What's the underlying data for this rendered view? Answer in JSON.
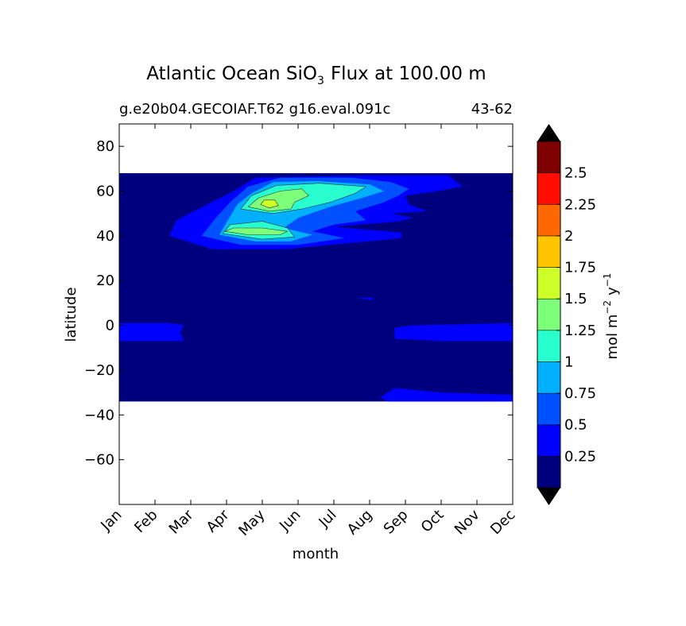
{
  "chart_data": {
    "type": "contour",
    "title_main": "Atlantic Ocean SiO",
    "title_sub": "3",
    "title_rest": "Flux at 100.00 m",
    "case_label": "g.e20b04.GECOIAF.T62 g16.eval.091c",
    "years_label": "43-62",
    "xlabel": "month",
    "ylabel": "latitude",
    "x_categories": [
      "Jan",
      "Feb",
      "Mar",
      "Apr",
      "May",
      "Jun",
      "Jul",
      "Aug",
      "Sep",
      "Oct",
      "Nov",
      "Dec"
    ],
    "xlim": [
      0,
      11
    ],
    "ylim": [
      -80,
      90
    ],
    "y_ticks": [
      -60,
      -40,
      -20,
      0,
      20,
      40,
      60,
      80
    ],
    "y_tick_labels": [
      "−60",
      "−40",
      "−20",
      "0",
      "20",
      "40",
      "60",
      "80"
    ],
    "data_lat_range": [
      -34,
      68
    ],
    "colorbar": {
      "label_main": "mol m",
      "label_exp1": "−2",
      "label_mid": "y",
      "label_exp2": "−1",
      "levels": [
        0,
        0.25,
        0.5,
        0.75,
        1,
        1.25,
        1.5,
        1.75,
        2,
        2.25,
        2.5,
        2.75
      ],
      "tick_values": [
        0.25,
        0.5,
        0.75,
        1,
        1.25,
        1.5,
        1.75,
        2,
        2.25,
        2.5
      ],
      "tick_labels": [
        "0.25",
        "0.5",
        "0.75",
        "1",
        "1.25",
        "1.5",
        "1.75",
        "2",
        "2.25",
        "2.5"
      ],
      "colors": [
        "#00007f",
        "#0000ff",
        "#0050ff",
        "#00b0ff",
        "#29ffce",
        "#7dff7a",
        "#ceff29",
        "#ffc400",
        "#ff6800",
        "#ff0d00",
        "#7f0000"
      ],
      "extend_low": "#000000",
      "extend_high": "#000000"
    },
    "contour_regions": [
      {
        "level": 1,
        "points": [
          [
            1.4,
            40
          ],
          [
            2.6,
            34
          ],
          [
            4.6,
            34
          ],
          [
            7.9,
            39
          ],
          [
            7.9,
            41.5
          ],
          [
            6.0,
            44
          ],
          [
            7.8,
            46.5
          ],
          [
            8.2,
            48
          ],
          [
            7.6,
            50
          ],
          [
            8.6,
            51
          ],
          [
            8.1,
            54
          ],
          [
            8.0,
            58
          ],
          [
            8.9,
            60
          ],
          [
            9.6,
            62
          ],
          [
            9.2,
            67
          ],
          [
            7.0,
            67
          ],
          [
            3.8,
            66
          ],
          [
            3.2,
            60
          ],
          [
            2.2,
            52
          ],
          [
            1.6,
            47
          ]
        ]
      },
      {
        "level": 1,
        "points": [
          [
            0,
            -7
          ],
          [
            1.8,
            -7
          ],
          [
            1.7,
            -3
          ],
          [
            1.8,
            0
          ],
          [
            1.4,
            1
          ],
          [
            0,
            1
          ]
        ]
      },
      {
        "level": 1,
        "points": [
          [
            7.7,
            -6
          ],
          [
            9.0,
            -7
          ],
          [
            11,
            -7
          ],
          [
            11,
            1
          ],
          [
            8.2,
            0
          ],
          [
            7.7,
            -1
          ]
        ]
      },
      {
        "level": 1,
        "points": [
          [
            7.5,
            -34
          ],
          [
            8.8,
            -34
          ],
          [
            11,
            -34
          ],
          [
            11,
            -31
          ],
          [
            9.0,
            -30
          ],
          [
            7.7,
            -28
          ],
          [
            7.3,
            -32
          ]
        ]
      },
      {
        "level": 1,
        "points": [
          [
            6.6,
            12
          ],
          [
            7.1,
            11.5
          ],
          [
            7.1,
            12.5
          ]
        ]
      },
      {
        "level": 2,
        "points": [
          [
            2.3,
            40
          ],
          [
            3.4,
            36
          ],
          [
            5.0,
            36
          ],
          [
            6.3,
            39
          ],
          [
            5.4,
            42
          ],
          [
            6.0,
            45
          ],
          [
            6.9,
            47
          ],
          [
            6.6,
            51
          ],
          [
            7.4,
            55
          ],
          [
            7.8,
            58
          ],
          [
            8.1,
            61
          ],
          [
            7.6,
            64
          ],
          [
            6.5,
            66
          ],
          [
            4.5,
            66
          ],
          [
            3.6,
            62
          ],
          [
            3.1,
            55
          ],
          [
            2.7,
            48
          ]
        ]
      },
      {
        "level": 3,
        "points": [
          [
            2.8,
            40.5
          ],
          [
            3.8,
            37.5
          ],
          [
            4.8,
            37.5
          ],
          [
            5.4,
            40.5
          ],
          [
            4.6,
            43.5
          ],
          [
            5.0,
            48
          ],
          [
            5.9,
            53
          ],
          [
            6.8,
            57
          ],
          [
            7.4,
            60
          ],
          [
            7.0,
            63
          ],
          [
            5.5,
            64.5
          ],
          [
            4.3,
            64
          ],
          [
            3.7,
            59
          ],
          [
            3.3,
            54
          ],
          [
            3.0,
            46
          ]
        ]
      },
      {
        "level": 4,
        "points": [
          [
            2.9,
            41
          ],
          [
            4.0,
            38.5
          ],
          [
            4.9,
            39.5
          ],
          [
            4.7,
            43.5
          ],
          [
            4.0,
            46.5
          ],
          [
            3.1,
            45
          ]
        ]
      },
      {
        "level": 4,
        "points": [
          [
            3.4,
            52
          ],
          [
            4.3,
            50
          ],
          [
            5.1,
            52
          ],
          [
            5.9,
            55
          ],
          [
            6.6,
            59
          ],
          [
            6.9,
            62
          ],
          [
            5.6,
            63.5
          ],
          [
            4.4,
            62.5
          ],
          [
            3.7,
            58
          ]
        ]
      },
      {
        "level": 5,
        "points": [
          [
            2.95,
            42
          ],
          [
            3.6,
            40.5
          ],
          [
            4.5,
            40.5
          ],
          [
            4.7,
            42
          ],
          [
            4.0,
            43.5
          ],
          [
            3.2,
            43.5
          ]
        ]
      },
      {
        "level": 5,
        "points": [
          [
            3.6,
            53
          ],
          [
            4.2,
            51
          ],
          [
            4.8,
            52
          ],
          [
            4.9,
            55
          ],
          [
            5.3,
            58
          ],
          [
            5.1,
            61
          ],
          [
            4.5,
            60
          ],
          [
            3.9,
            57
          ]
        ]
      },
      {
        "level": 6,
        "points": [
          [
            3.95,
            54
          ],
          [
            4.2,
            52.5
          ],
          [
            4.45,
            53.5
          ],
          [
            4.35,
            56
          ],
          [
            4.05,
            56
          ]
        ]
      }
    ]
  }
}
